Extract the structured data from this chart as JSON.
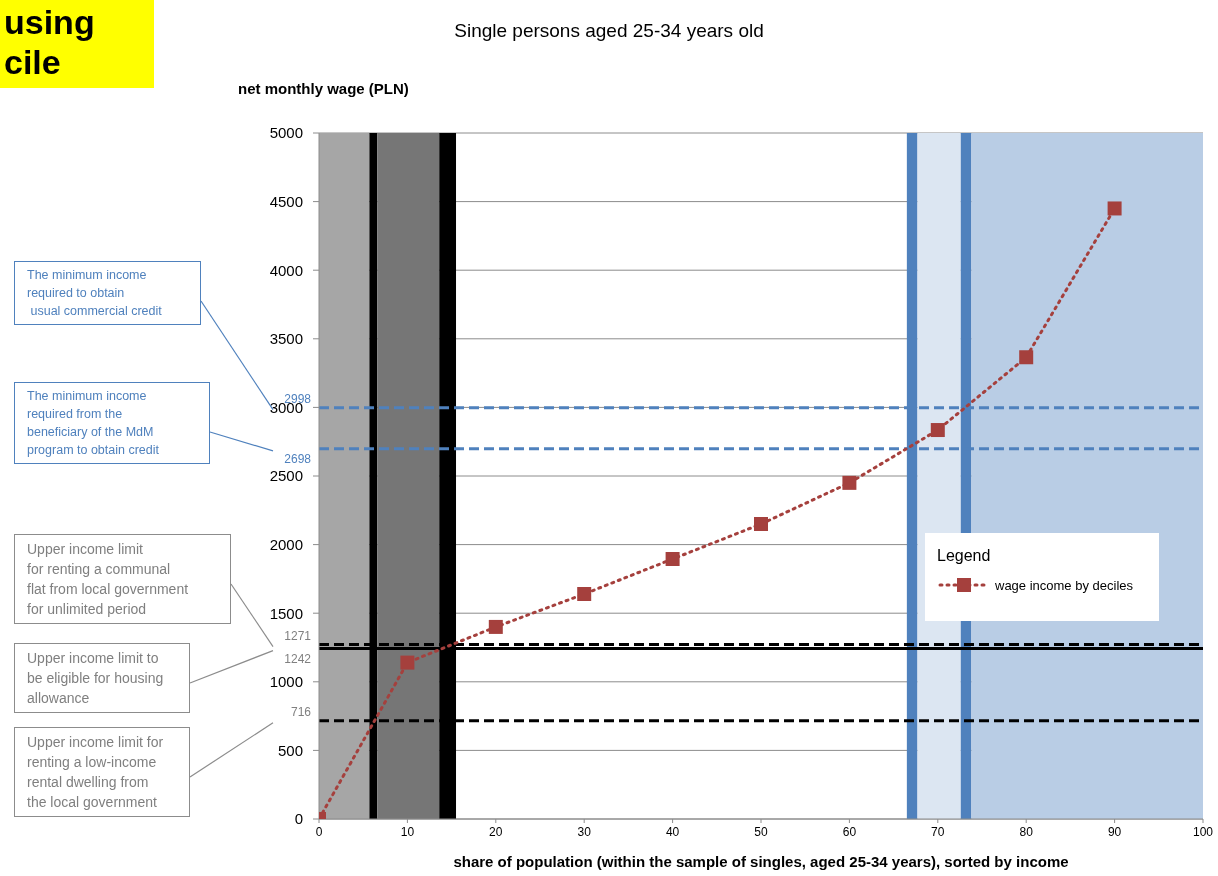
{
  "chart_data": {
    "type": "line",
    "title": "Single persons aged 25-34 years old",
    "xlabel": "share of population (within the sample of singles, aged 25-34 years), sorted by income",
    "ylabel": "net monthly wage (PLN)",
    "legend_title": "Legend",
    "x": [
      0,
      10,
      20,
      30,
      40,
      50,
      60,
      70,
      80,
      90
    ],
    "series": [
      {
        "name": "wage income by deciles",
        "color": "#a5403d",
        "values": [
          0,
          1140,
          1400,
          1640,
          1895,
          2150,
          2450,
          2835,
          3365,
          4450
        ]
      }
    ],
    "xlim": [
      0,
      100
    ],
    "xticks": [
      0,
      10,
      20,
      30,
      40,
      50,
      60,
      70,
      80,
      90,
      100
    ],
    "ylim": [
      0,
      5000
    ],
    "yticks": [
      0,
      500,
      1000,
      1500,
      2000,
      2500,
      3000,
      3500,
      4000,
      4500,
      5000
    ],
    "grid": "y",
    "legend": "right",
    "marker": "square",
    "line_style": "dotted",
    "bands": [
      {
        "axis": "x",
        "from": 0,
        "to": 5.7,
        "color": "#a6a6a6"
      },
      {
        "axis": "x",
        "from": 5.7,
        "to": 6.6,
        "color": "#000000"
      },
      {
        "axis": "x",
        "from": 6.6,
        "to": 13.6,
        "color": "#767676"
      },
      {
        "axis": "x",
        "from": 13.6,
        "to": 15.5,
        "color": "#000000"
      },
      {
        "axis": "x",
        "from": 66.5,
        "to": 67.7,
        "color": "#4f81bd"
      },
      {
        "axis": "x",
        "from": 67.7,
        "to": 72.6,
        "color": "#dce6f2"
      },
      {
        "axis": "x",
        "from": 72.6,
        "to": 73.8,
        "color": "#4f81bd"
      },
      {
        "axis": "x",
        "from": 73.8,
        "to": 100,
        "color": "#b9cde5"
      }
    ],
    "ref_lines": [
      {
        "axis": "y",
        "value": 2998,
        "label": "2998",
        "color": "#4f81bd",
        "line_style": "dashed"
      },
      {
        "axis": "y",
        "value": 2698,
        "label": "2698",
        "color": "#4f81bd",
        "line_style": "dashed"
      },
      {
        "axis": "y",
        "value": 1271,
        "label": "1271",
        "color": "#000000",
        "line_style": "dashed"
      },
      {
        "axis": "y",
        "value": 1242,
        "label": "1242",
        "color": "#000000",
        "line_style": "solid"
      },
      {
        "axis": "y",
        "value": 716,
        "label": "716",
        "color": "#000000",
        "line_style": "dashed"
      }
    ],
    "annotations": [
      "using\ncile",
      "The minimum income\nrequired to obtain\n usual commercial credit",
      "The minimum income\nrequired from the\nbeneficiary of the MdM\nprogram to obtain credit",
      "Upper income limit\nfor renting a communal\nflat from local government\nfor unlimited period",
      "Upper income limit to\nbe eligible for housing\nallowance",
      "Upper income limit for\nrenting a low-income\nrental dwelling from\nthe local government"
    ]
  }
}
